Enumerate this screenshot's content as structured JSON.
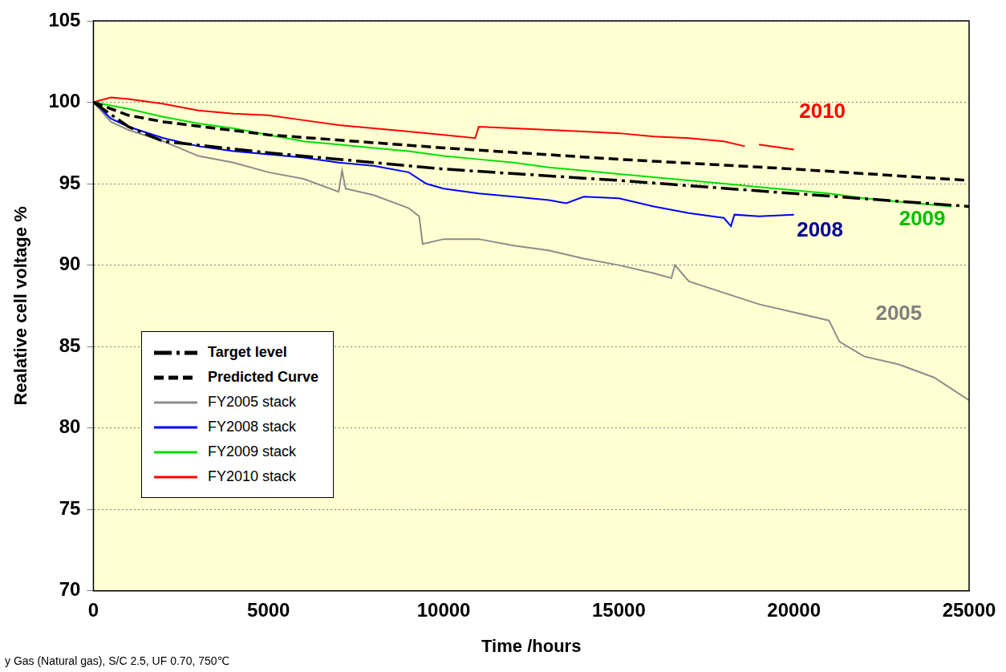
{
  "chart_data": {
    "type": "line",
    "x_label": "Time /hours",
    "y_label": "Realative cell voltage %",
    "footnote": "y Gas (Natural gas), S/C 2.5, UF 0.70, 750℃",
    "xlim": [
      0,
      25000
    ],
    "xticks": [
      0,
      5000,
      10000,
      15000,
      20000,
      25000
    ],
    "ylim": [
      70,
      105
    ],
    "yticks": [
      70,
      75,
      80,
      85,
      90,
      95,
      100,
      105
    ],
    "grid": true,
    "legend": "lower left",
    "series": [
      {
        "name": "Target level",
        "color": "#000000",
        "line_style": "dashdot",
        "x": [
          0,
          1000,
          2000,
          5000,
          10000,
          15000,
          20000,
          25000
        ],
        "values": [
          100,
          98.5,
          97.6,
          96.9,
          95.9,
          95.2,
          94.4,
          93.6
        ]
      },
      {
        "name": "Predicted Curve",
        "color": "#000000",
        "line_style": "dashed",
        "x": [
          0,
          1000,
          2000,
          5000,
          10000,
          15000,
          20000,
          25000
        ],
        "values": [
          100,
          99.2,
          98.8,
          98.0,
          97.2,
          96.5,
          95.9,
          95.2
        ]
      },
      {
        "name": "FY2005 stack",
        "color": "#8c8c8c",
        "line_style": "solid",
        "x": [
          0,
          500,
          1000,
          2000,
          3000,
          4000,
          5000,
          6000,
          7000,
          7100,
          7200,
          8000,
          9000,
          9300,
          9400,
          10000,
          11000,
          12000,
          13000,
          14000,
          15000,
          16000,
          16500,
          16600,
          17000,
          18000,
          19000,
          20000,
          21000,
          21300,
          22000,
          23000,
          24000,
          25000
        ],
        "values": [
          100,
          98.8,
          98.3,
          97.6,
          96.7,
          96.3,
          95.7,
          95.3,
          94.5,
          95.8,
          94.7,
          94.3,
          93.5,
          93.0,
          91.3,
          91.6,
          91.6,
          91.2,
          90.9,
          90.4,
          90.0,
          89.5,
          89.2,
          90.0,
          89.0,
          88.3,
          87.6,
          87.1,
          86.6,
          85.3,
          84.4,
          83.9,
          83.1,
          81.7
        ]
      },
      {
        "name": "FY2008 stack",
        "color": "#0000ff",
        "line_style": "solid",
        "x": [
          0,
          500,
          1000,
          2000,
          3000,
          4000,
          5000,
          6000,
          7000,
          8000,
          9000,
          9500,
          10000,
          11000,
          12000,
          13000,
          13500,
          14000,
          15000,
          16000,
          17000,
          18000,
          18200,
          18300,
          19000,
          20000
        ],
        "values": [
          100,
          99.0,
          98.5,
          97.8,
          97.3,
          97.0,
          96.8,
          96.6,
          96.3,
          96.1,
          95.7,
          95.0,
          94.7,
          94.4,
          94.2,
          94.0,
          93.8,
          94.2,
          94.1,
          93.6,
          93.2,
          92.9,
          92.4,
          93.1,
          93.0,
          93.1
        ]
      },
      {
        "name": "FY2009 stack",
        "color": "#00e000",
        "line_style": "solid",
        "x": [
          0,
          1000,
          2000,
          3000,
          4000,
          5000,
          6000,
          7000,
          8000,
          9000,
          10000,
          11000,
          12000,
          13000,
          14000,
          15000,
          16000,
          17000,
          18000,
          19000,
          20000,
          21000,
          22000,
          23000,
          24000,
          24500
        ],
        "values": [
          100,
          99.6,
          99.1,
          98.7,
          98.4,
          98.0,
          97.6,
          97.4,
          97.2,
          97.0,
          96.7,
          96.5,
          96.3,
          96.0,
          95.8,
          95.6,
          95.4,
          95.2,
          95.0,
          94.8,
          94.6,
          94.4,
          94.1,
          93.9,
          93.7,
          93.6
        ]
      },
      {
        "name": "FY2010 stack",
        "color": "#ff0000",
        "line_style": "solid",
        "x": [
          0,
          500,
          1000,
          2000,
          3000,
          4000,
          5000,
          6000,
          7000,
          8000,
          9000,
          10000,
          10900,
          11000,
          12000,
          13000,
          14000,
          15000,
          16000,
          17000,
          18000,
          18600,
          18800,
          19000,
          20000
        ],
        "values": [
          100,
          100.3,
          100.2,
          99.9,
          99.5,
          99.3,
          99.2,
          98.9,
          98.6,
          98.4,
          98.2,
          98.0,
          97.8,
          98.5,
          98.4,
          98.3,
          98.2,
          98.1,
          97.9,
          97.8,
          97.6,
          97.3,
          null,
          97.4,
          97.1
        ]
      }
    ],
    "annotations": [
      {
        "text": "2010",
        "x": 20150,
        "y": 99.4,
        "color": "#ff0000"
      },
      {
        "text": "2009",
        "x": 23000,
        "y": 92.8,
        "color": "#00c000"
      },
      {
        "text": "2008",
        "x": 20080,
        "y": 92.1,
        "color": "#000099"
      },
      {
        "text": "2005",
        "x": 22330,
        "y": 87.0,
        "color": "#808080"
      }
    ]
  }
}
